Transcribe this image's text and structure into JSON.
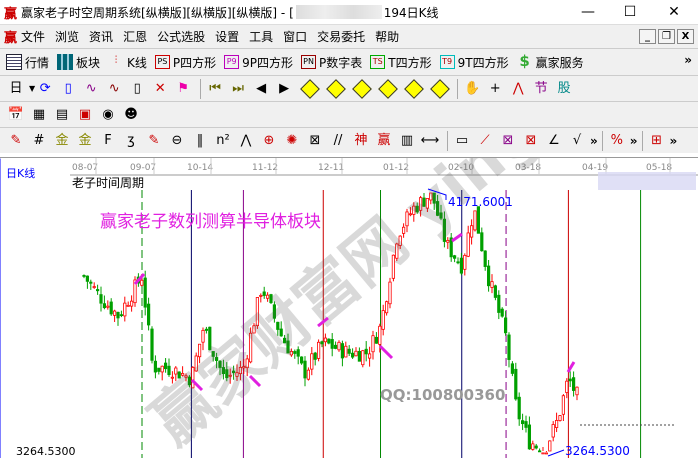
{
  "window": {
    "title": "赢家老子时空周期系统[纵横版][纵横版][纵横版] - [",
    "title_suffix": "194日K线",
    "logo": "赢"
  },
  "menu": [
    "文件",
    "浏览",
    "资讯",
    "汇恩",
    "公式选股",
    "设置",
    "工具",
    "窗口",
    "交易委托",
    "帮助"
  ],
  "toolbar1": [
    {
      "icon": "table-icon",
      "label": "行情"
    },
    {
      "icon": "blocks-icon",
      "label": "板块"
    },
    {
      "icon": "candles-icon",
      "label": "K线"
    },
    {
      "icon": "PS",
      "label": "P四方形",
      "color": "#c00"
    },
    {
      "icon": "P9",
      "label": "9P四方形",
      "color": "#b0b"
    },
    {
      "icon": "PN",
      "label": "P数字表",
      "color": "#900"
    },
    {
      "icon": "TS",
      "label": "T四方形",
      "color": "#0a0"
    },
    {
      "icon": "T9",
      "label": "9T四方形",
      "color": "#0bb"
    },
    {
      "icon": "$",
      "label": "赢家服务",
      "color": "#3a3"
    }
  ],
  "toolbar2": {
    "period": "日"
  },
  "chart": {
    "period_label": "日K线",
    "indicator": "老子时间周期",
    "annotation": "赢家老子数列测算半导体板块",
    "watermark": "赢家财富网 yingjia360.com",
    "qq": "QQ:100800360",
    "high_label": "4171.6001",
    "low_label": "3264.5300",
    "axis_low": "3264.5300",
    "date_ticks": [
      "08-07",
      "09-07",
      "10-14",
      "11-12",
      "12-11",
      "01-12",
      "02-10",
      "03-18",
      "04-19",
      "05-18"
    ],
    "colors": {
      "up": "#ff0000",
      "down": "#00a000",
      "annotation": "#e020e0",
      "arrow": "#e020e0"
    }
  },
  "chart_data": {
    "type": "candlestick",
    "ylim": [
      3264.53,
      4171.6
    ],
    "x_ticks": [
      "08-07",
      "09-07",
      "10-14",
      "11-12",
      "12-11",
      "01-12",
      "02-10",
      "03-18",
      "04-19",
      "05-18"
    ],
    "closes_approx": [
      {
        "date": "08-07",
        "close": 3880
      },
      {
        "date": "08-15",
        "close": 3810
      },
      {
        "date": "08-25",
        "close": 3740
      },
      {
        "date": "09-07",
        "close": 3880
      },
      {
        "date": "09-14",
        "close": 3560
      },
      {
        "date": "09-26",
        "close": 3555
      },
      {
        "date": "10-09",
        "close": 3520
      },
      {
        "date": "10-16",
        "close": 3700
      },
      {
        "date": "10-25",
        "close": 3520
      },
      {
        "date": "11-03",
        "close": 3555
      },
      {
        "date": "11-11",
        "close": 3845
      },
      {
        "date": "11-20",
        "close": 3665
      },
      {
        "date": "11-30",
        "close": 3540
      },
      {
        "date": "12-08",
        "close": 3645
      },
      {
        "date": "12-20",
        "close": 3610
      },
      {
        "date": "12-29",
        "close": 3610
      },
      {
        "date": "01-05",
        "close": 3700
      },
      {
        "date": "01-13",
        "close": 4027
      },
      {
        "date": "01-20",
        "close": 4117
      },
      {
        "date": "01-28",
        "close": 4171
      },
      {
        "date": "02-04",
        "close": 3990
      },
      {
        "date": "02-11",
        "close": 3918
      },
      {
        "date": "02-18",
        "close": 4117
      },
      {
        "date": "02-26",
        "close": 3882
      },
      {
        "date": "03-06",
        "close": 3664
      },
      {
        "date": "03-12",
        "close": 3410
      },
      {
        "date": "03-19",
        "close": 3300
      },
      {
        "date": "03-26",
        "close": 3265
      },
      {
        "date": "04-02",
        "close": 3373
      },
      {
        "date": "04-07",
        "close": 3519
      },
      {
        "date": "04-12",
        "close": 3446
      }
    ],
    "cycle_lines": [
      "09-07",
      "10-09",
      "11-03",
      "12-08",
      "01-05",
      "02-11",
      "03-06",
      "04-07",
      "05-10"
    ]
  }
}
